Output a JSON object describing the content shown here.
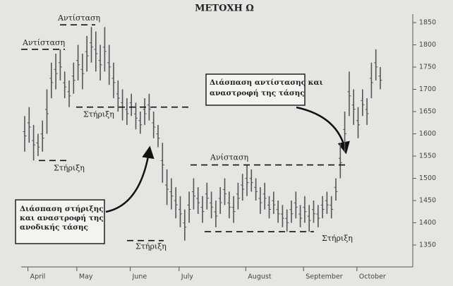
{
  "chart_data": {
    "type": "hilo",
    "title": "ΜΕΤΟΧΗ Ω",
    "categories": [
      null,
      null,
      "April",
      null,
      null,
      null,
      null,
      null,
      null,
      null,
      null,
      null,
      null,
      "May",
      null,
      null,
      null,
      null,
      null,
      null,
      null,
      null,
      null,
      null,
      null,
      "June",
      null,
      null,
      null,
      null,
      null,
      null,
      null,
      null,
      null,
      null,
      "July",
      null,
      null,
      null,
      null,
      null,
      null,
      null,
      null,
      null,
      null,
      null,
      null,
      null,
      null,
      "August",
      null,
      null,
      null,
      null,
      null,
      null,
      null,
      null,
      null,
      null,
      null,
      null,
      "September",
      null,
      null,
      null,
      null,
      null,
      null,
      null,
      null,
      null,
      null,
      null,
      "October",
      null,
      null,
      null,
      null
    ],
    "series": [
      {
        "color": "#555555",
        "high": [
          1640,
          1660,
          1620,
          1600,
          1630,
          1700,
          1760,
          1780,
          1790,
          1740,
          1720,
          1760,
          1800,
          1780,
          1820,
          1840,
          1830,
          1800,
          1840,
          1800,
          1760,
          1720,
          1700,
          1680,
          1690,
          1670,
          1650,
          1680,
          1690,
          1650,
          1620,
          1580,
          1520,
          1500,
          1480,
          1460,
          1430,
          1470,
          1500,
          1480,
          1460,
          1490,
          1470,
          1450,
          1480,
          1500,
          1470,
          1460,
          1490,
          1510,
          1530,
          1520,
          1500,
          1480,
          1490,
          1460,
          1470,
          1450,
          1440,
          1430,
          1450,
          1470,
          1440,
          1460,
          1440,
          1450,
          1440,
          1460,
          1470,
          1460,
          1500,
          1580,
          1650,
          1740,
          1700,
          1660,
          1700,
          1680,
          1760,
          1790,
          1750
        ],
        "low": [
          1560,
          1580,
          1540,
          1550,
          1560,
          1600,
          1680,
          1700,
          1720,
          1680,
          1660,
          1690,
          1720,
          1700,
          1740,
          1760,
          1740,
          1720,
          1740,
          1710,
          1680,
          1650,
          1630,
          1620,
          1640,
          1610,
          1600,
          1620,
          1630,
          1590,
          1570,
          1490,
          1440,
          1430,
          1410,
          1390,
          1360,
          1400,
          1430,
          1420,
          1400,
          1430,
          1410,
          1390,
          1420,
          1440,
          1410,
          1400,
          1430,
          1450,
          1460,
          1470,
          1450,
          1420,
          1430,
          1410,
          1420,
          1400,
          1390,
          1380,
          1400,
          1410,
          1390,
          1400,
          1380,
          1400,
          1390,
          1410,
          1420,
          1410,
          1450,
          1500,
          1560,
          1640,
          1620,
          1590,
          1640,
          1620,
          1680,
          1720,
          1700
        ]
      }
    ],
    "ylim": [
      1330,
      1860
    ],
    "yticks": [
      1350,
      1400,
      1450,
      1500,
      1550,
      1600,
      1650,
      1700,
      1750,
      1800,
      1850
    ],
    "levels": [
      {
        "label": "Αντίσταση",
        "value": 1845
      },
      {
        "label": "Αντίσταση",
        "value": 1790
      },
      {
        "label": "Στήριξη",
        "value": 1660
      },
      {
        "label": "Στήριξη",
        "value": 1540
      },
      {
        "label": "Στήριξη",
        "value": 1360
      },
      {
        "label": "Ανίσταση",
        "value": 1530
      },
      {
        "label": "Στήριξη",
        "value": 1380
      }
    ],
    "annotations": [
      {
        "lines": [
          "Διάσπαση στήριξης",
          "και αναστροφή της",
          "ανοδικής τάσης"
        ]
      },
      {
        "lines": [
          "Διάσπαση αντίστασης και",
          "αναστροφή της τάσης"
        ]
      }
    ]
  }
}
